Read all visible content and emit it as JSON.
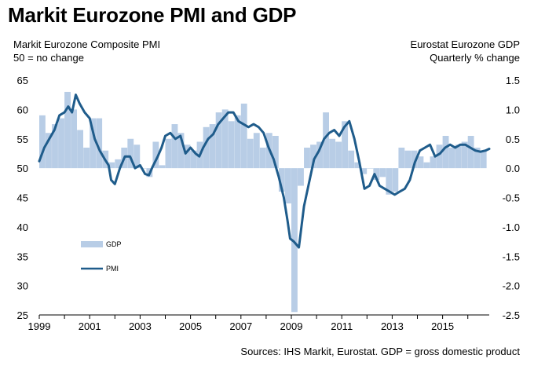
{
  "title": "Markit Eurozone PMI and GDP",
  "left_axis": {
    "label_line1": "Markit Eurozone Composite PMI",
    "label_line2": "50 = no change"
  },
  "right_axis": {
    "label_line1": "Eurostat Eurozone GDP",
    "label_line2": "Quarterly % change"
  },
  "source": "Sources: IHS Markit, Eurostat. GDP = gross domestic product",
  "colors": {
    "pmi": "#1f5c8b",
    "gdp": "#b8cde6"
  },
  "chart_data": {
    "type": "bar+line",
    "x_ticks": [
      "1999",
      "2001",
      "2003",
      "2005",
      "2007",
      "2009",
      "2011",
      "2013",
      "2015"
    ],
    "x_range": [
      1999.0,
      2016.85
    ],
    "y_left": {
      "ylim": [
        25,
        65
      ],
      "ticks": [
        "65",
        "60",
        "55",
        "50",
        "45",
        "40",
        "35",
        "30",
        "25"
      ]
    },
    "y_right": {
      "ylim": [
        -2.5,
        1.5
      ],
      "ticks": [
        "1.5",
        "1.0",
        "0.5",
        "0.0",
        "-0.5",
        "-1.0",
        "-1.5",
        "-2.0",
        "-2.5"
      ]
    },
    "legend": [
      {
        "name": "GDP",
        "kind": "bar"
      },
      {
        "name": "PMI",
        "kind": "line"
      }
    ],
    "series": [
      {
        "name": "GDP",
        "axis": "right",
        "kind": "bar",
        "x": [
          1999.0,
          1999.25,
          1999.5,
          1999.75,
          2000.0,
          2000.25,
          2000.5,
          2000.75,
          2001.0,
          2001.25,
          2001.5,
          2001.75,
          2002.0,
          2002.25,
          2002.5,
          2002.75,
          2003.0,
          2003.25,
          2003.5,
          2003.75,
          2004.0,
          2004.25,
          2004.5,
          2004.75,
          2005.0,
          2005.25,
          2005.5,
          2005.75,
          2006.0,
          2006.25,
          2006.5,
          2006.75,
          2007.0,
          2007.25,
          2007.5,
          2007.75,
          2008.0,
          2008.25,
          2008.5,
          2008.75,
          2009.0,
          2009.25,
          2009.5,
          2009.75,
          2010.0,
          2010.25,
          2010.5,
          2010.75,
          2011.0,
          2011.25,
          2011.5,
          2011.75,
          2012.0,
          2012.25,
          2012.5,
          2012.75,
          2013.0,
          2013.25,
          2013.5,
          2013.75,
          2014.0,
          2014.25,
          2014.5,
          2014.75,
          2015.0,
          2015.25,
          2015.5,
          2015.75,
          2016.0,
          2016.25,
          2016.5
        ],
        "values": [
          0.9,
          0.6,
          0.75,
          0.85,
          1.3,
          1.0,
          0.65,
          0.35,
          0.85,
          0.85,
          0.3,
          0.1,
          0.15,
          0.35,
          0.5,
          0.4,
          0.0,
          -0.15,
          0.45,
          0.05,
          0.5,
          0.75,
          0.6,
          0.4,
          0.3,
          0.45,
          0.7,
          0.75,
          0.95,
          1.0,
          0.8,
          0.9,
          1.1,
          0.5,
          0.6,
          0.35,
          0.6,
          0.55,
          -0.4,
          -0.6,
          -2.45,
          -0.3,
          0.35,
          0.4,
          0.45,
          0.95,
          0.5,
          0.45,
          0.8,
          0.3,
          0.1,
          -0.1,
          0.0,
          -0.2,
          -0.15,
          -0.45,
          -0.4,
          0.35,
          0.3,
          0.3,
          0.2,
          0.1,
          0.2,
          0.4,
          0.55,
          0.35,
          0.4,
          0.45,
          0.55,
          0.35,
          0.3
        ]
      },
      {
        "name": "PMI",
        "axis": "left",
        "kind": "line",
        "x": [
          1999.0,
          1999.2,
          1999.4,
          1999.6,
          1999.8,
          2000.0,
          2000.15,
          2000.3,
          2000.45,
          2000.6,
          2000.8,
          2001.0,
          2001.2,
          2001.4,
          2001.6,
          2001.75,
          2001.85,
          2002.0,
          2002.2,
          2002.4,
          2002.6,
          2002.8,
          2003.0,
          2003.2,
          2003.35,
          2003.5,
          2003.7,
          2003.85,
          2004.0,
          2004.2,
          2004.4,
          2004.6,
          2004.8,
          2005.0,
          2005.2,
          2005.35,
          2005.5,
          2005.7,
          2005.9,
          2006.1,
          2006.3,
          2006.5,
          2006.7,
          2006.9,
          2007.1,
          2007.3,
          2007.5,
          2007.7,
          2007.9,
          2008.1,
          2008.3,
          2008.5,
          2008.7,
          2008.85,
          2008.95,
          2009.1,
          2009.3,
          2009.5,
          2009.7,
          2009.9,
          2010.1,
          2010.3,
          2010.5,
          2010.7,
          2010.9,
          2011.1,
          2011.3,
          2011.5,
          2011.7,
          2011.9,
          2012.1,
          2012.3,
          2012.5,
          2012.7,
          2012.9,
          2013.1,
          2013.3,
          2013.5,
          2013.7,
          2013.9,
          2014.1,
          2014.3,
          2014.5,
          2014.7,
          2014.9,
          2015.1,
          2015.3,
          2015.5,
          2015.7,
          2015.9,
          2016.1,
          2016.3,
          2016.5,
          2016.7,
          2016.85
        ],
        "values": [
          51.2,
          53.5,
          55.0,
          56.5,
          59.0,
          59.5,
          60.5,
          59.5,
          62.5,
          61.0,
          59.5,
          58.5,
          55.0,
          53.0,
          51.5,
          50.5,
          48.0,
          47.3,
          50.0,
          52.0,
          52.0,
          50.0,
          50.5,
          49.0,
          48.8,
          50.3,
          52.0,
          53.5,
          55.5,
          56.0,
          55.0,
          55.5,
          52.5,
          53.5,
          52.5,
          52.0,
          53.5,
          55.0,
          55.8,
          57.5,
          58.5,
          59.5,
          59.5,
          58.0,
          57.5,
          57.0,
          57.5,
          57.0,
          56.0,
          53.5,
          51.5,
          48.5,
          45.0,
          41.0,
          38.0,
          37.5,
          36.5,
          43.5,
          47.5,
          51.5,
          53.0,
          55.0,
          56.0,
          56.5,
          55.5,
          57.0,
          58.0,
          55.0,
          51.0,
          46.5,
          47.0,
          49.0,
          47.0,
          46.5,
          46.0,
          45.5,
          46.0,
          46.5,
          48.0,
          51.0,
          53.0,
          53.5,
          54.0,
          52.0,
          52.5,
          53.5,
          54.0,
          53.5,
          54.0,
          54.0,
          53.5,
          53.0,
          52.8,
          53.0,
          53.3
        ]
      }
    ]
  }
}
